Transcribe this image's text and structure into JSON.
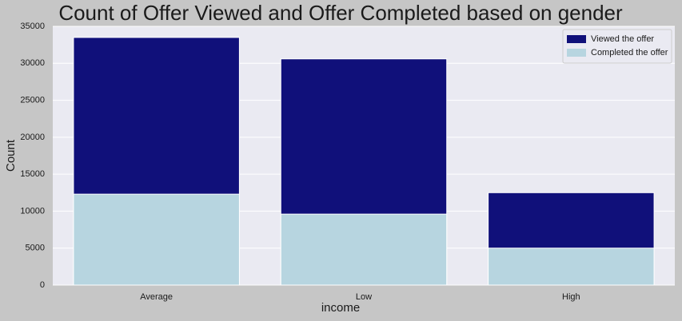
{
  "chart_data": {
    "type": "bar",
    "overlay": true,
    "title": "Count of Offer Viewed and Offer Completed based on gender",
    "x_label": "income",
    "y_label": "Count",
    "categories": [
      "Average",
      "Low",
      "High"
    ],
    "series": [
      {
        "name": "Viewed the offer",
        "color": "#10107a",
        "values": [
          33500,
          30600,
          12500
        ]
      },
      {
        "name": "Completed the offer",
        "color": "#b7d5e0",
        "values": [
          12300,
          9600,
          5000
        ]
      }
    ],
    "ylim": [
      0,
      35000
    ],
    "yticks": [
      0,
      5000,
      10000,
      15000,
      20000,
      25000,
      30000,
      35000
    ],
    "grid": true,
    "legend": "upper right"
  }
}
